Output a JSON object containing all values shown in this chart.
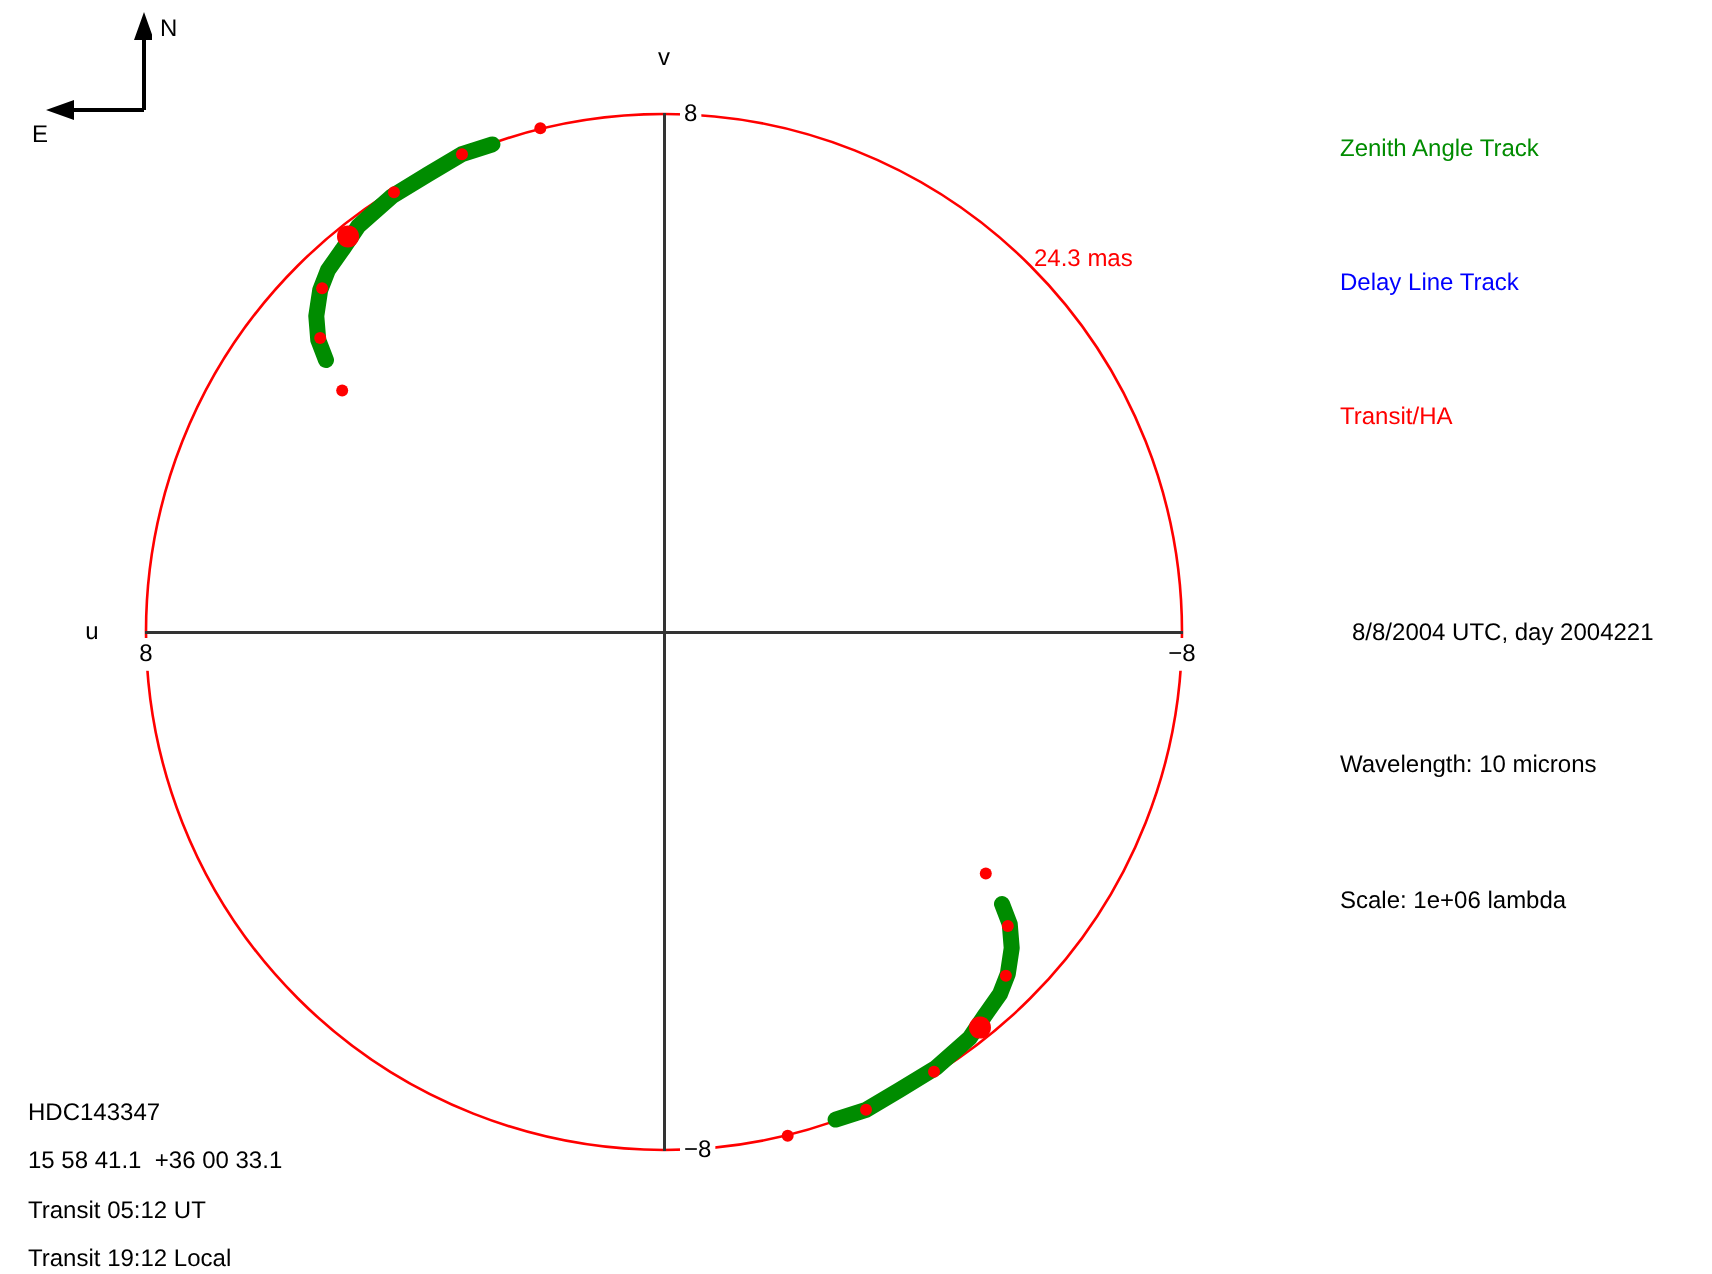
{
  "chart_data": {
    "type": "scatter",
    "xlabel": "u",
    "ylabel": "v",
    "xlim": [
      8,
      -8
    ],
    "ylim": [
      -8,
      8
    ],
    "xticks": [
      8,
      {
        "value": -8,
        "label": "−8"
      }
    ],
    "yticks": [
      {
        "value": -8,
        "label": "−8"
      },
      8
    ],
    "legend": "right",
    "marker": "circle",
    "annotations": [
      "N",
      "E",
      "8/8/2004 UTC, day 2004221",
      "Wavelength: 10 microns",
      "Scale: 1e+06 lambda",
      "HDC143347",
      "15 58 41.1  +36 00 33.1",
      "Transit 05:12 UT",
      "Transit 19:12 Local",
      "24.3 mas"
    ],
    "series": [
      {
        "type": "line",
        "marker": "none",
        "name": "Zenith Angle Track",
        "color": "#008c00",
        "x": [
          2.65,
          3.12,
          3.64,
          4.2,
          4.72,
          4.97,
          5.19,
          5.31,
          5.37,
          5.34,
          5.22
        ],
        "values": [
          7.53,
          7.38,
          7.07,
          6.73,
          6.27,
          5.9,
          5.59,
          5.28,
          4.88,
          4.51,
          4.2
        ]
      },
      {
        "type": "line",
        "marker": "none",
        "color": "#008c00",
        "x": [
          -2.65,
          -3.12,
          -3.64,
          -4.2,
          -4.72,
          -4.97,
          -5.19,
          -5.31,
          -5.37,
          -5.34,
          -5.22
        ],
        "values": [
          -7.53,
          -7.38,
          -7.07,
          -6.73,
          -6.27,
          -5.9,
          -5.59,
          -5.28,
          -4.88,
          -4.51,
          -4.2
        ]
      },
      {
        "type": "line",
        "marker": "none",
        "name": "Delay Line Track",
        "color": "#0000ff"
      },
      {
        "name": "Transit/HA",
        "color": "#ff0000",
        "x": [
          1.91,
          3.12,
          4.17,
          5.28,
          5.31,
          4.97,
          -1.91,
          -3.12,
          -4.17,
          -5.28,
          -5.31,
          -4.97
        ],
        "values": [
          7.78,
          7.38,
          6.79,
          5.31,
          4.54,
          3.73,
          -7.78,
          -7.38,
          -6.79,
          -5.31,
          -4.54,
          -3.73
        ]
      },
      {
        "color": "#ff0000",
        "x": [
          4.88,
          -4.88
        ],
        "values": [
          6.11,
          -6.11
        ]
      }
    ]
  }
}
